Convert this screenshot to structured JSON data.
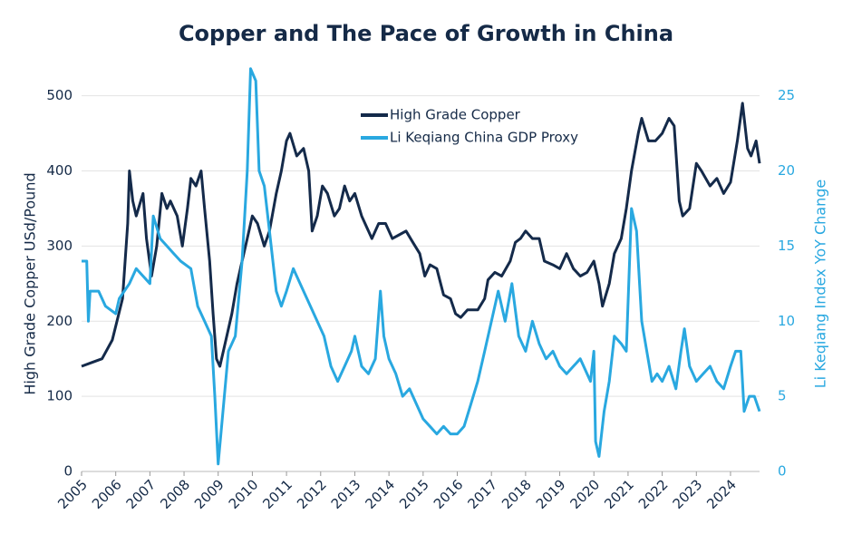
{
  "chart_data": {
    "type": "line",
    "title": "Copper and The Pace of Growth in China",
    "ylabel": "High Grade Copper USd/Pound",
    "y2label": "Li Keqiang Index YoY Change",
    "xlim": [
      2005,
      2024.85
    ],
    "xticks": [
      2005,
      2006,
      2007,
      2008,
      2009,
      2010,
      2011,
      2012,
      2013,
      2014,
      2015,
      2016,
      2017,
      2018,
      2019,
      2020,
      2021,
      2022,
      2023,
      2024
    ],
    "ylim": [
      0,
      537
    ],
    "yticks": [
      0,
      100,
      200,
      300,
      400,
      500
    ],
    "y2lim": [
      0,
      26.85
    ],
    "y2ticks": [
      0,
      5,
      10,
      15,
      20,
      25
    ],
    "grid": true,
    "series": [
      {
        "name": "High Grade Copper",
        "color": "#142a4a",
        "x": [
          2005.0,
          2005.3,
          2005.6,
          2005.9,
          2006.2,
          2006.35,
          2006.4,
          2006.5,
          2006.6,
          2006.8,
          2006.9,
          2007.05,
          2007.2,
          2007.35,
          2007.5,
          2007.6,
          2007.8,
          2007.95,
          2008.1,
          2008.2,
          2008.35,
          2008.5,
          2008.6,
          2008.75,
          2008.85,
          2008.95,
          2009.05,
          2009.2,
          2009.4,
          2009.55,
          2009.7,
          2009.85,
          2010.0,
          2010.15,
          2010.35,
          2010.5,
          2010.7,
          2010.85,
          2011.0,
          2011.1,
          2011.3,
          2011.5,
          2011.65,
          2011.75,
          2011.9,
          2012.05,
          2012.2,
          2012.4,
          2012.55,
          2012.7,
          2012.85,
          2013.0,
          2013.2,
          2013.4,
          2013.5,
          2013.7,
          2013.9,
          2014.1,
          2014.3,
          2014.5,
          2014.7,
          2014.9,
          2015.05,
          2015.2,
          2015.4,
          2015.6,
          2015.8,
          2015.95,
          2016.1,
          2016.3,
          2016.6,
          2016.8,
          2016.9,
          2017.1,
          2017.3,
          2017.55,
          2017.7,
          2017.85,
          2018.0,
          2018.2,
          2018.4,
          2018.55,
          2018.8,
          2019.0,
          2019.2,
          2019.4,
          2019.6,
          2019.8,
          2020.0,
          2020.15,
          2020.25,
          2020.45,
          2020.6,
          2020.8,
          2020.95,
          2021.1,
          2021.3,
          2021.4,
          2021.6,
          2021.8,
          2022.0,
          2022.2,
          2022.35,
          2022.5,
          2022.6,
          2022.8,
          2023.0,
          2023.15,
          2023.4,
          2023.6,
          2023.8,
          2024.0,
          2024.2,
          2024.35,
          2024.5,
          2024.6,
          2024.75,
          2024.85
        ],
        "values": [
          140,
          145,
          150,
          175,
          230,
          330,
          400,
          360,
          340,
          370,
          310,
          260,
          300,
          370,
          350,
          360,
          340,
          300,
          350,
          390,
          380,
          400,
          350,
          280,
          210,
          150,
          140,
          170,
          210,
          250,
          280,
          310,
          340,
          330,
          300,
          320,
          370,
          400,
          440,
          450,
          420,
          430,
          400,
          320,
          340,
          380,
          370,
          340,
          350,
          380,
          360,
          370,
          340,
          320,
          310,
          330,
          330,
          310,
          315,
          320,
          305,
          290,
          260,
          275,
          270,
          235,
          230,
          210,
          205,
          215,
          215,
          230,
          255,
          265,
          260,
          280,
          305,
          310,
          320,
          310,
          310,
          280,
          275,
          270,
          290,
          270,
          260,
          265,
          280,
          250,
          220,
          250,
          290,
          310,
          350,
          400,
          450,
          470,
          440,
          440,
          450,
          470,
          460,
          360,
          340,
          350,
          410,
          400,
          380,
          390,
          370,
          385,
          440,
          490,
          430,
          420,
          440,
          410
        ]
      },
      {
        "name": "Li Keqiang China GDP Proxy",
        "color": "#29a8e0",
        "axis": "y2",
        "x": [
          2005.0,
          2005.15,
          2005.2,
          2005.25,
          2005.5,
          2005.7,
          2006.0,
          2006.1,
          2006.4,
          2006.6,
          2006.8,
          2007.0,
          2007.1,
          2007.3,
          2007.5,
          2007.7,
          2007.9,
          2008.2,
          2008.4,
          2008.6,
          2008.8,
          2008.9,
          2009.0,
          2009.1,
          2009.3,
          2009.5,
          2009.7,
          2009.85,
          2009.95,
          2010.1,
          2010.2,
          2010.35,
          2010.5,
          2010.7,
          2010.85,
          2011.0,
          2011.2,
          2011.5,
          2011.7,
          2011.9,
          2012.1,
          2012.3,
          2012.5,
          2012.7,
          2012.9,
          2013.0,
          2013.2,
          2013.4,
          2013.6,
          2013.75,
          2013.85,
          2014.0,
          2014.2,
          2014.4,
          2014.6,
          2014.8,
          2015.0,
          2015.2,
          2015.4,
          2015.6,
          2015.8,
          2016.0,
          2016.2,
          2016.4,
          2016.6,
          2016.8,
          2017.0,
          2017.2,
          2017.4,
          2017.6,
          2017.8,
          2018.0,
          2018.2,
          2018.4,
          2018.6,
          2018.8,
          2019.0,
          2019.2,
          2019.4,
          2019.6,
          2019.8,
          2019.9,
          2020.0,
          2020.05,
          2020.15,
          2020.3,
          2020.45,
          2020.6,
          2020.8,
          2020.95,
          2021.1,
          2021.25,
          2021.4,
          2021.55,
          2021.7,
          2021.85,
          2022.0,
          2022.2,
          2022.4,
          2022.55,
          2022.65,
          2022.8,
          2023.0,
          2023.2,
          2023.4,
          2023.6,
          2023.8,
          2024.0,
          2024.15,
          2024.3,
          2024.4,
          2024.55,
          2024.7,
          2024.85
        ],
        "values": [
          14,
          14,
          10,
          12,
          12,
          11,
          10.5,
          11.5,
          12.5,
          13.5,
          13,
          12.5,
          17,
          15.5,
          15,
          14.5,
          14,
          13.5,
          11,
          10,
          9,
          5,
          0.5,
          3,
          8,
          9,
          14,
          20,
          26.8,
          26,
          20,
          19,
          16,
          12,
          11,
          12,
          13.5,
          12,
          11,
          10,
          9,
          7,
          6,
          7,
          8,
          9,
          7,
          6.5,
          7.5,
          12,
          9,
          7.5,
          6.5,
          5,
          5.5,
          4.5,
          3.5,
          3,
          2.5,
          3,
          2.5,
          2.5,
          3,
          4.5,
          6,
          8,
          10,
          12,
          10,
          12.5,
          9,
          8,
          10,
          8.5,
          7.5,
          8,
          7,
          6.5,
          7,
          7.5,
          6.5,
          6,
          8,
          2,
          1,
          4,
          6,
          9,
          8.5,
          8,
          17.5,
          16,
          10,
          8,
          6,
          6.5,
          6,
          7,
          5.5,
          8,
          9.5,
          7,
          6,
          6.5,
          7,
          6,
          5.5,
          7,
          8,
          8,
          4,
          5,
          5,
          4
        ]
      }
    ]
  }
}
